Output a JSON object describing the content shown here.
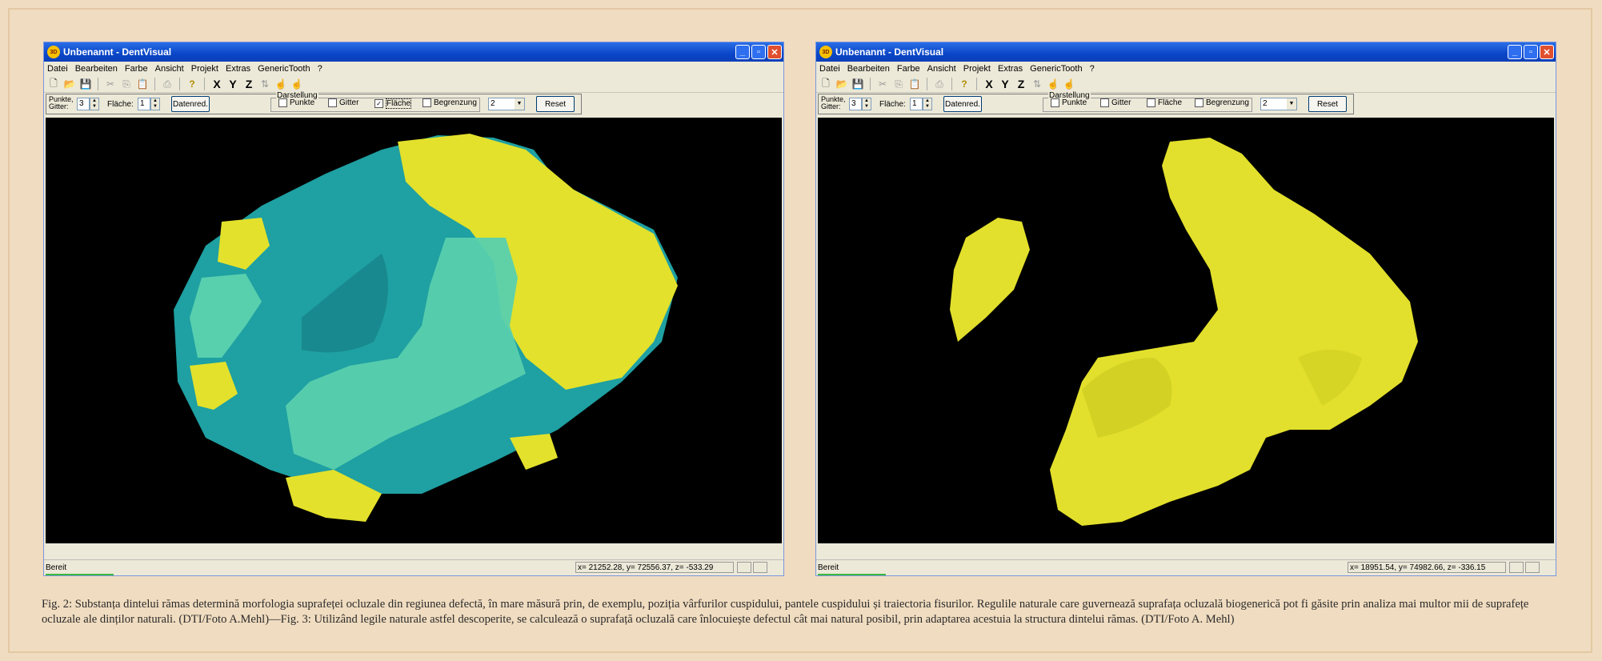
{
  "windows": [
    {
      "title": "Unbenannt - DentVisual",
      "menu": [
        "Datei",
        "Bearbeiten",
        "Farbe",
        "Ansicht",
        "Projekt",
        "Extras",
        "GenericTooth",
        "?"
      ],
      "controls": {
        "points_label_line1": "Punkte,",
        "points_label_line2": "Gitter:",
        "points_value": "3",
        "area_label": "Fläche:",
        "area_value": "1",
        "datenred_button": "Datenred.",
        "group_label": "Darstellung",
        "checkboxes": [
          {
            "label": "Punkte",
            "checked": false
          },
          {
            "label": "Gitter",
            "checked": false
          },
          {
            "label": "Fläche",
            "checked": true
          },
          {
            "label": "Begrenzung",
            "checked": false
          }
        ],
        "combo_value": "2",
        "reset_button": "Reset"
      },
      "status": "Bereit",
      "coords": "x= 21252.28, y= 72556.37, z= -533.29"
    },
    {
      "title": "Unbenannt - DentVisual",
      "menu": [
        "Datei",
        "Bearbeiten",
        "Farbe",
        "Ansicht",
        "Projekt",
        "Extras",
        "GenericTooth",
        "?"
      ],
      "controls": {
        "points_label_line1": "Punkte,",
        "points_label_line2": "Gitter:",
        "points_value": "3",
        "area_label": "Fläche:",
        "area_value": "1",
        "datenred_button": "Datenred.",
        "group_label": "Darstellung",
        "checkboxes": [
          {
            "label": "Punkte",
            "checked": false
          },
          {
            "label": "Gitter",
            "checked": false
          },
          {
            "label": "Fläche",
            "checked": false
          },
          {
            "label": "Begrenzung",
            "checked": false
          }
        ],
        "combo_value": "2",
        "reset_button": "Reset"
      },
      "status": "Bereit",
      "coords": "x= 18951.54, y= 74982.66, z= -336.15"
    }
  ],
  "toolbar_glyphs": {
    "axis_x": "X",
    "axis_y": "Y",
    "axis_z": "Z"
  },
  "caption": "Fig. 2: Substanța dintelui rămas determină morfologia suprafeței ocluzale din regiunea defectă, în mare măsură prin, de exemplu, poziția vârfurilor cuspidului, pantele cuspidului și traiectoria fisurilor. Regulile naturale care guvernează suprafața ocluzală biogenerică pot fi găsite prin analiza mai multor mii de suprafețe ocluzale ale dinților naturali. (DTI/Foto A.Mehl)—Fig. 3: Utilizând legile naturale astfel descoperite, se calculează o suprafață ocluzală care înlocuiește defectul cât mai natural posibil, prin adaptarea acestuia la structura dintelui rămas. (DTI/Foto A. Mehl)",
  "colors": {
    "yellow": "#e2e02c",
    "teal": "#1fa7a8",
    "mint": "#54d6b0",
    "background": "#f0dcc0"
  }
}
